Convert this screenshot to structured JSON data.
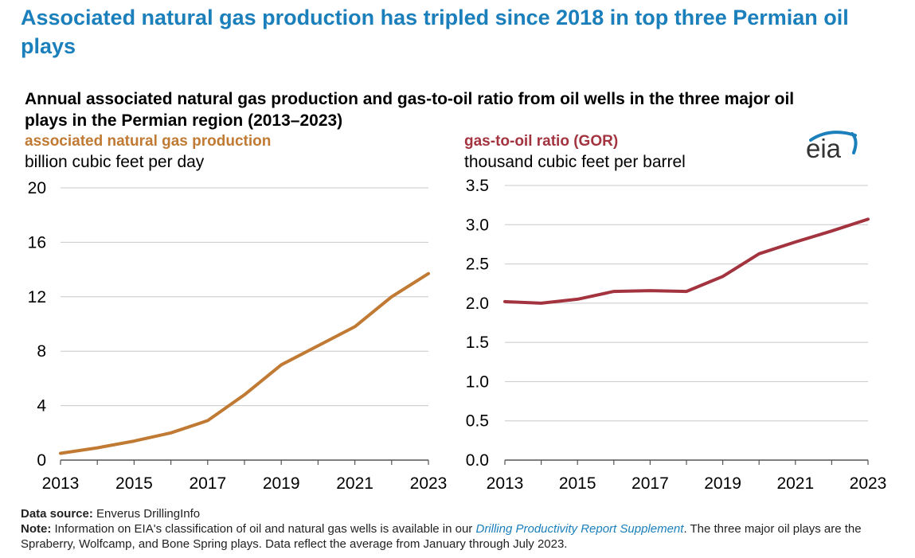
{
  "headline": "Associated natural gas production has tripled since 2018 in top three Permian oil plays",
  "subtitle": "Annual associated natural gas production and gas-to-oil ratio from oil wells in the three major oil plays in the Permian region (2013–2023)",
  "logo_text": "eia",
  "footer": {
    "source_label": "Data source:",
    "source_text": "Enverus DrillingInfo",
    "note_label": "Note:",
    "note_text_1": "Information on EIA's classification of oil and natural gas wells is available in our",
    "note_link": "Drilling Productivity Report Supplement",
    "note_text_2": ". The three major oil plays are the Spraberry, Wolfcamp, and Bone Spring plays. Data reflect the average from January through July 2023."
  },
  "colors": {
    "gas": "#c07a33",
    "gor": "#a3343f",
    "headline": "#1a7fbb",
    "grid": "#c8c8c8",
    "logo_arc": "#1a7fbb"
  },
  "chart_data": [
    {
      "type": "line",
      "title": "associated natural gas production",
      "ylabel": "billion cubic feet per day",
      "x": [
        2013,
        2014,
        2015,
        2016,
        2017,
        2018,
        2019,
        2020,
        2021,
        2022,
        2023
      ],
      "x_tick_labels": [
        "2013",
        "2015",
        "2017",
        "2019",
        "2021",
        "2023"
      ],
      "ylim": [
        0,
        20
      ],
      "y_tick_labels": [
        "0",
        "4",
        "8",
        "12",
        "16",
        "20"
      ],
      "grid": true,
      "series": [
        {
          "values": [
            0.5,
            0.9,
            1.4,
            2.0,
            2.9,
            4.8,
            7.0,
            8.4,
            9.8,
            12.0,
            13.7
          ]
        }
      ]
    },
    {
      "type": "line",
      "title": "gas-to-oil ratio (GOR)",
      "ylabel": "thousand cubic feet per barrel",
      "x": [
        2013,
        2014,
        2015,
        2016,
        2017,
        2018,
        2019,
        2020,
        2021,
        2022,
        2023
      ],
      "x_tick_labels": [
        "2013",
        "2015",
        "2017",
        "2019",
        "2021",
        "2023"
      ],
      "ylim": [
        0,
        3.5
      ],
      "y_tick_labels": [
        "0.0",
        "0.5",
        "1.0",
        "1.5",
        "2.0",
        "2.5",
        "3.0",
        "3.5"
      ],
      "grid": true,
      "series": [
        {
          "values": [
            2.02,
            2.0,
            2.05,
            2.15,
            2.16,
            2.15,
            2.34,
            2.63,
            2.78,
            2.92,
            3.07
          ]
        }
      ]
    }
  ]
}
